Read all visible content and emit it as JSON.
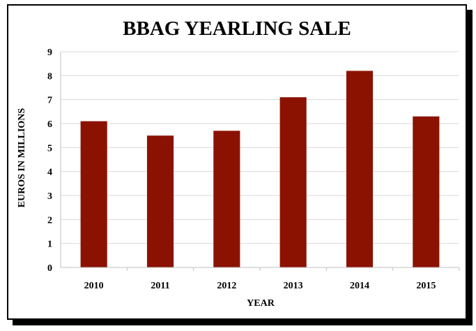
{
  "chart_data": {
    "type": "bar",
    "title": "BBAG YEARLING SALE",
    "xlabel": "YEAR",
    "ylabel": "EUROS IN MILLIONS",
    "categories": [
      "2010",
      "2011",
      "2012",
      "2013",
      "2014",
      "2015"
    ],
    "values": [
      6.1,
      5.5,
      5.7,
      7.1,
      8.2,
      6.3
    ],
    "ylim": [
      0,
      9
    ],
    "yticks": [
      "0",
      "1",
      "2",
      "3",
      "4",
      "5",
      "6",
      "7",
      "8",
      "9"
    ],
    "grid": true,
    "legend": "none",
    "bar_color": "#8b1200",
    "grid_color": "#d9d9d9"
  }
}
